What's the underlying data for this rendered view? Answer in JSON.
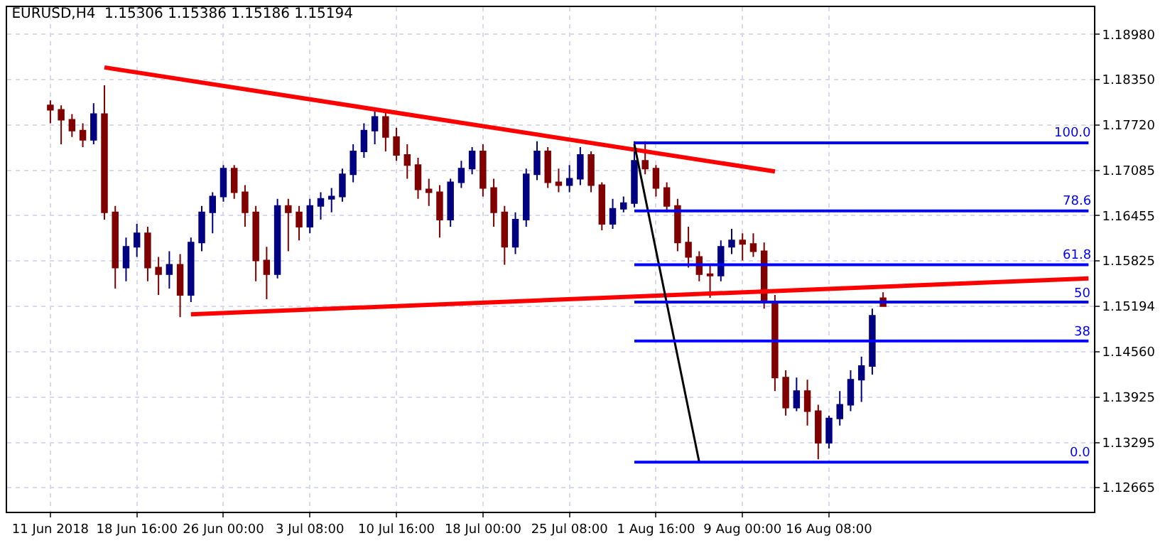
{
  "chart_data": {
    "type": "candlestick",
    "title": "EURUSD,H4  1.15306 1.15386 1.15186 1.15194",
    "categories": [
      "11 Jun 2018",
      null,
      null,
      null,
      null,
      null,
      null,
      null,
      "18 Jun 16:00",
      null,
      null,
      null,
      null,
      null,
      null,
      null,
      "26 Jun 00:00",
      null,
      null,
      null,
      null,
      null,
      null,
      null,
      "3 Jul 08:00",
      null,
      null,
      null,
      null,
      null,
      null,
      null,
      "10 Jul 16:00",
      null,
      null,
      null,
      null,
      null,
      null,
      null,
      "18 Jul 00:00",
      null,
      null,
      null,
      null,
      null,
      null,
      null,
      "25 Jul 08:00",
      null,
      null,
      null,
      null,
      null,
      null,
      null,
      "1 Aug 16:00",
      null,
      null,
      null,
      null,
      null,
      null,
      null,
      "9 Aug 00:00",
      null,
      null,
      null,
      null,
      null,
      null,
      null,
      "16 Aug 08:00",
      null,
      null,
      null,
      null,
      null,
      null,
      null,
      null,
      null,
      null,
      null,
      null,
      null,
      null,
      null,
      null,
      null,
      null,
      null,
      null,
      null,
      null,
      null,
      null
    ],
    "ohlc": [
      [
        1.1799,
        1.1806,
        1.1774,
        1.1793
      ],
      [
        1.1793,
        1.1799,
        1.1745,
        1.1779
      ],
      [
        1.1779,
        1.1787,
        1.1755,
        1.1764
      ],
      [
        1.1764,
        1.1774,
        1.1741,
        1.1751
      ],
      [
        1.1751,
        1.1802,
        1.1745,
        1.1787
      ],
      [
        1.1787,
        1.1827,
        1.164,
        1.165
      ],
      [
        1.165,
        1.1659,
        1.1544,
        1.1573
      ],
      [
        1.1573,
        1.1615,
        1.1554,
        1.1602
      ],
      [
        1.1602,
        1.1634,
        1.1588,
        1.1621
      ],
      [
        1.1621,
        1.163,
        1.1554,
        1.1573
      ],
      [
        1.1573,
        1.1588,
        1.1535,
        1.1564
      ],
      [
        1.1564,
        1.1596,
        1.1544,
        1.1577
      ],
      [
        1.1577,
        1.1592,
        1.1504,
        1.1535
      ],
      [
        1.1535,
        1.1615,
        1.1525,
        1.1608
      ],
      [
        1.1608,
        1.1659,
        1.1596,
        1.165
      ],
      [
        1.165,
        1.1678,
        1.1621,
        1.1672
      ],
      [
        1.1672,
        1.1716,
        1.1665,
        1.1711
      ],
      [
        1.1711,
        1.1716,
        1.1669,
        1.1678
      ],
      [
        1.1678,
        1.1688,
        1.163,
        1.165
      ],
      [
        1.165,
        1.1659,
        1.1554,
        1.1583
      ],
      [
        1.1583,
        1.1602,
        1.1529,
        1.1564
      ],
      [
        1.1564,
        1.1669,
        1.1558,
        1.1659
      ],
      [
        1.1659,
        1.1669,
        1.1596,
        1.165
      ],
      [
        1.165,
        1.1659,
        1.1611,
        1.163
      ],
      [
        1.163,
        1.1669,
        1.1621,
        1.1659
      ],
      [
        1.1659,
        1.1678,
        1.164,
        1.1669
      ],
      [
        1.1669,
        1.1684,
        1.165,
        1.1672
      ],
      [
        1.1672,
        1.1711,
        1.1665,
        1.1703
      ],
      [
        1.1703,
        1.1745,
        1.1692,
        1.1735
      ],
      [
        1.1735,
        1.1774,
        1.1726,
        1.1764
      ],
      [
        1.1764,
        1.1791,
        1.1745,
        1.1783
      ],
      [
        1.1783,
        1.1793,
        1.1735,
        1.1755
      ],
      [
        1.1755,
        1.1768,
        1.1722,
        1.173
      ],
      [
        1.173,
        1.1745,
        1.1697,
        1.1716
      ],
      [
        1.1716,
        1.1726,
        1.1669,
        1.1682
      ],
      [
        1.1682,
        1.1697,
        1.1659,
        1.1678
      ],
      [
        1.1678,
        1.1688,
        1.1615,
        1.164
      ],
      [
        1.164,
        1.1697,
        1.163,
        1.1692
      ],
      [
        1.1692,
        1.1722,
        1.1684,
        1.1711
      ],
      [
        1.1711,
        1.1741,
        1.1703,
        1.1735
      ],
      [
        1.1735,
        1.1745,
        1.1672,
        1.1684
      ],
      [
        1.1684,
        1.1697,
        1.163,
        1.165
      ],
      [
        1.165,
        1.1659,
        1.1577,
        1.1602
      ],
      [
        1.1602,
        1.165,
        1.1592,
        1.164
      ],
      [
        1.164,
        1.1711,
        1.163,
        1.1703
      ],
      [
        1.1703,
        1.1749,
        1.1695,
        1.1735
      ],
      [
        1.1735,
        1.1741,
        1.1684,
        1.1692
      ],
      [
        1.1692,
        1.1711,
        1.1678,
        1.1688
      ],
      [
        1.1688,
        1.1716,
        1.1678,
        1.1697
      ],
      [
        1.1697,
        1.1741,
        1.1688,
        1.173
      ],
      [
        1.173,
        1.1735,
        1.1678,
        1.1688
      ],
      [
        1.1688,
        1.1692,
        1.1625,
        1.1634
      ],
      [
        1.1634,
        1.1669,
        1.1627,
        1.1655
      ],
      [
        1.1655,
        1.1672,
        1.165,
        1.1663
      ],
      [
        1.1663,
        1.1749,
        1.1657,
        1.1722
      ],
      [
        1.1722,
        1.1749,
        1.1703,
        1.1711
      ],
      [
        1.1711,
        1.1716,
        1.1672,
        1.1684
      ],
      [
        1.1684,
        1.1692,
        1.165,
        1.1659
      ],
      [
        1.1659,
        1.1669,
        1.1596,
        1.1608
      ],
      [
        1.1608,
        1.163,
        1.1573,
        1.1588
      ],
      [
        1.1588,
        1.1596,
        1.1554,
        1.1564
      ],
      [
        1.1564,
        1.1577,
        1.1531,
        1.1562
      ],
      [
        1.1562,
        1.1611,
        1.1554,
        1.1602
      ],
      [
        1.1602,
        1.1627,
        1.1592,
        1.1611
      ],
      [
        1.1611,
        1.1621,
        1.1583,
        1.1606
      ],
      [
        1.1606,
        1.1621,
        1.1588,
        1.1596
      ],
      [
        1.1596,
        1.1608,
        1.1516,
        1.1525
      ],
      [
        1.1525,
        1.1535,
        1.1401,
        1.142
      ],
      [
        1.142,
        1.143,
        1.1367,
        1.1378
      ],
      [
        1.1378,
        1.142,
        1.1373,
        1.1401
      ],
      [
        1.1401,
        1.1417,
        1.1353,
        1.1373
      ],
      [
        1.1373,
        1.1382,
        1.1306,
        1.1329
      ],
      [
        1.1329,
        1.1367,
        1.1321,
        1.1363
      ],
      [
        1.1363,
        1.1401,
        1.1353,
        1.1382
      ],
      [
        1.1382,
        1.143,
        1.1373,
        1.1417
      ],
      [
        1.1417,
        1.1449,
        1.1386,
        1.1436
      ],
      [
        1.1436,
        1.1516,
        1.1424,
        1.1506
      ],
      [
        1.15306,
        1.15386,
        1.15186,
        1.15194
      ],
      null,
      null,
      null,
      null,
      null,
      null,
      null,
      null,
      null,
      null,
      null,
      null,
      null,
      null,
      null,
      null,
      null,
      null,
      null
    ],
    "colors": [
      "#800000",
      "#800000",
      "#800000",
      "#800000",
      "#000080",
      "#800000",
      "#800000",
      "#000080",
      "#000080",
      "#800000",
      "#800000",
      "#000080",
      "#800000",
      "#000080",
      "#000080",
      "#000080",
      "#000080",
      "#800000",
      "#800000",
      "#800000",
      "#800000",
      "#000080",
      "#800000",
      "#800000",
      "#000080",
      "#000080",
      "#000080",
      "#000080",
      "#000080",
      "#000080",
      "#000080",
      "#800000",
      "#800000",
      "#800000",
      "#800000",
      "#800000",
      "#800000",
      "#000080",
      "#000080",
      "#000080",
      "#800000",
      "#800000",
      "#800000",
      "#000080",
      "#000080",
      "#000080",
      "#800000",
      "#800000",
      "#000080",
      "#000080",
      "#800000",
      "#800000",
      "#000080",
      "#000080",
      "#000080",
      "#800000",
      "#800000",
      "#800000",
      "#800000",
      "#800000",
      "#800000",
      "#800000",
      "#000080",
      "#000080",
      "#800000",
      "#800000",
      "#800000",
      "#800000",
      "#800000",
      "#000080",
      "#800000",
      "#800000",
      "#000080",
      "#000080",
      "#000080",
      "#000080",
      "#000080",
      "#800000",
      null,
      null,
      null,
      null,
      null,
      null,
      null,
      null,
      null,
      null,
      null,
      null,
      null,
      null,
      null,
      null,
      null,
      null,
      null
    ],
    "series": [
      {
        "type": "line",
        "color": "#ff0000",
        "values": [
          null,
          null,
          null,
          null,
          null,
          1.1852,
          null,
          null,
          null,
          null,
          null,
          null,
          null,
          null,
          null,
          null,
          null,
          null,
          null,
          null,
          null,
          null,
          null,
          null,
          null,
          null,
          null,
          null,
          null,
          null,
          null,
          null,
          null,
          null,
          null,
          null,
          null,
          null,
          null,
          null,
          null,
          null,
          null,
          null,
          null,
          null,
          null,
          null,
          null,
          null,
          null,
          null,
          null,
          null,
          null,
          null,
          null,
          null,
          null,
          null,
          null,
          null,
          null,
          null,
          null,
          null,
          null,
          1.1707,
          null,
          null,
          null,
          null,
          null,
          null,
          null,
          null,
          null,
          null,
          null,
          null,
          null,
          null,
          null,
          null,
          null,
          null,
          null,
          null,
          null,
          null,
          null,
          null,
          null,
          null,
          null,
          null,
          null
        ]
      },
      {
        "type": "line",
        "color": "#ff0000",
        "values": [
          null,
          null,
          null,
          null,
          null,
          null,
          null,
          null,
          null,
          null,
          null,
          null,
          null,
          1.1508,
          null,
          null,
          null,
          null,
          null,
          null,
          null,
          null,
          null,
          null,
          null,
          null,
          null,
          null,
          null,
          null,
          null,
          null,
          null,
          null,
          null,
          null,
          null,
          null,
          null,
          null,
          null,
          null,
          null,
          null,
          null,
          null,
          null,
          null,
          null,
          null,
          null,
          null,
          null,
          null,
          null,
          null,
          null,
          null,
          null,
          null,
          null,
          null,
          null,
          null,
          null,
          null,
          null,
          null,
          null,
          null,
          null,
          null,
          null,
          null,
          null,
          null,
          null,
          null,
          null,
          null,
          null,
          null,
          null,
          null,
          null,
          null,
          null,
          null,
          null,
          null,
          null,
          null,
          null,
          null,
          null,
          null,
          1.1558
        ]
      },
      {
        "type": "line",
        "color": "#000000",
        "values": [
          null,
          null,
          null,
          null,
          null,
          null,
          null,
          null,
          null,
          null,
          null,
          null,
          null,
          null,
          null,
          null,
          null,
          null,
          null,
          null,
          null,
          null,
          null,
          null,
          null,
          null,
          null,
          null,
          null,
          null,
          null,
          null,
          null,
          null,
          null,
          null,
          null,
          null,
          null,
          null,
          null,
          null,
          null,
          null,
          null,
          null,
          null,
          null,
          null,
          null,
          null,
          null,
          null,
          null,
          1.1745,
          null,
          null,
          null,
          null,
          null,
          1.1302,
          null,
          null,
          null,
          null,
          null,
          null,
          null,
          null,
          null,
          null,
          null,
          null,
          null,
          null,
          null,
          null,
          null,
          null,
          null,
          null,
          null,
          null,
          null,
          null,
          null,
          null,
          null,
          null,
          null,
          null,
          null,
          null,
          null,
          null,
          null,
          null
        ]
      },
      {
        "type": "line",
        "color": "#0000ff",
        "name": "100.0",
        "values": [
          null,
          null,
          null,
          null,
          null,
          null,
          null,
          null,
          null,
          null,
          null,
          null,
          null,
          null,
          null,
          null,
          null,
          null,
          null,
          null,
          null,
          null,
          null,
          null,
          null,
          null,
          null,
          null,
          null,
          null,
          null,
          null,
          null,
          null,
          null,
          null,
          null,
          null,
          null,
          null,
          null,
          null,
          null,
          null,
          null,
          null,
          null,
          null,
          null,
          null,
          null,
          null,
          null,
          null,
          1.1747,
          null,
          null,
          null,
          null,
          null,
          null,
          null,
          null,
          null,
          null,
          null,
          null,
          null,
          null,
          null,
          null,
          null,
          null,
          null,
          null,
          null,
          null,
          null,
          null,
          null,
          null,
          null,
          null,
          null,
          null,
          null,
          null,
          null,
          null,
          null,
          null,
          null,
          null,
          null,
          null,
          null,
          1.1747
        ]
      },
      {
        "type": "line",
        "color": "#0000ff",
        "name": "78.6",
        "values": [
          null,
          null,
          null,
          null,
          null,
          null,
          null,
          null,
          null,
          null,
          null,
          null,
          null,
          null,
          null,
          null,
          null,
          null,
          null,
          null,
          null,
          null,
          null,
          null,
          null,
          null,
          null,
          null,
          null,
          null,
          null,
          null,
          null,
          null,
          null,
          null,
          null,
          null,
          null,
          null,
          null,
          null,
          null,
          null,
          null,
          null,
          null,
          null,
          null,
          null,
          null,
          null,
          null,
          null,
          1.1652,
          null,
          null,
          null,
          null,
          null,
          null,
          null,
          null,
          null,
          null,
          null,
          null,
          null,
          null,
          null,
          null,
          null,
          null,
          null,
          null,
          null,
          null,
          null,
          null,
          null,
          null,
          null,
          null,
          null,
          null,
          null,
          null,
          null,
          null,
          null,
          null,
          null,
          null,
          null,
          null,
          null,
          1.1652
        ]
      },
      {
        "type": "line",
        "color": "#0000ff",
        "name": "61.8",
        "values": [
          null,
          null,
          null,
          null,
          null,
          null,
          null,
          null,
          null,
          null,
          null,
          null,
          null,
          null,
          null,
          null,
          null,
          null,
          null,
          null,
          null,
          null,
          null,
          null,
          null,
          null,
          null,
          null,
          null,
          null,
          null,
          null,
          null,
          null,
          null,
          null,
          null,
          null,
          null,
          null,
          null,
          null,
          null,
          null,
          null,
          null,
          null,
          null,
          null,
          null,
          null,
          null,
          null,
          null,
          1.1577,
          null,
          null,
          null,
          null,
          null,
          null,
          null,
          null,
          null,
          null,
          null,
          null,
          null,
          null,
          null,
          null,
          null,
          null,
          null,
          null,
          null,
          null,
          null,
          null,
          null,
          null,
          null,
          null,
          null,
          null,
          null,
          null,
          null,
          null,
          null,
          null,
          null,
          null,
          null,
          null,
          null,
          1.1577
        ]
      },
      {
        "type": "line",
        "color": "#0000ff",
        "name": "50",
        "values": [
          null,
          null,
          null,
          null,
          null,
          null,
          null,
          null,
          null,
          null,
          null,
          null,
          null,
          null,
          null,
          null,
          null,
          null,
          null,
          null,
          null,
          null,
          null,
          null,
          null,
          null,
          null,
          null,
          null,
          null,
          null,
          null,
          null,
          null,
          null,
          null,
          null,
          null,
          null,
          null,
          null,
          null,
          null,
          null,
          null,
          null,
          null,
          null,
          null,
          null,
          null,
          null,
          null,
          null,
          1.1525,
          null,
          null,
          null,
          null,
          null,
          null,
          null,
          null,
          null,
          null,
          null,
          null,
          null,
          null,
          null,
          null,
          null,
          null,
          null,
          null,
          null,
          null,
          null,
          null,
          null,
          null,
          null,
          null,
          null,
          null,
          null,
          null,
          null,
          null,
          null,
          null,
          null,
          null,
          null,
          null,
          null,
          1.1525
        ]
      },
      {
        "type": "line",
        "color": "#0000ff",
        "name": "38",
        "values": [
          null,
          null,
          null,
          null,
          null,
          null,
          null,
          null,
          null,
          null,
          null,
          null,
          null,
          null,
          null,
          null,
          null,
          null,
          null,
          null,
          null,
          null,
          null,
          null,
          null,
          null,
          null,
          null,
          null,
          null,
          null,
          null,
          null,
          null,
          null,
          null,
          null,
          null,
          null,
          null,
          null,
          null,
          null,
          null,
          null,
          null,
          null,
          null,
          null,
          null,
          null,
          null,
          null,
          null,
          1.1471,
          null,
          null,
          null,
          null,
          null,
          null,
          null,
          null,
          null,
          null,
          null,
          null,
          null,
          null,
          null,
          null,
          null,
          null,
          null,
          null,
          null,
          null,
          null,
          null,
          null,
          null,
          null,
          null,
          null,
          null,
          null,
          null,
          null,
          null,
          null,
          null,
          null,
          null,
          null,
          null,
          null,
          1.1471
        ]
      },
      {
        "type": "line",
        "color": "#0000ff",
        "name": "0.0",
        "values": [
          null,
          null,
          null,
          null,
          null,
          null,
          null,
          null,
          null,
          null,
          null,
          null,
          null,
          null,
          null,
          null,
          null,
          null,
          null,
          null,
          null,
          null,
          null,
          null,
          null,
          null,
          null,
          null,
          null,
          null,
          null,
          null,
          null,
          null,
          null,
          null,
          null,
          null,
          null,
          null,
          null,
          null,
          null,
          null,
          null,
          null,
          null,
          null,
          null,
          null,
          null,
          null,
          null,
          null,
          1.1302,
          null,
          null,
          null,
          null,
          null,
          null,
          null,
          null,
          null,
          null,
          null,
          null,
          null,
          null,
          null,
          null,
          null,
          null,
          null,
          null,
          null,
          null,
          null,
          null,
          null,
          null,
          null,
          null,
          null,
          null,
          null,
          null,
          null,
          null,
          null,
          null,
          null,
          null,
          null,
          null,
          null,
          1.1302
        ]
      }
    ],
    "ylim": [
      1.1233,
      1.1936
    ],
    "yticks": [
      {
        "value": 1.1898,
        "label": "1.18980"
      },
      {
        "value": 1.1835,
        "label": "1.18350"
      },
      {
        "value": 1.1772,
        "label": "1.17720"
      },
      {
        "value": 1.17085,
        "label": "1.17085"
      },
      {
        "value": 1.16455,
        "label": "1.16455"
      },
      {
        "value": 1.15825,
        "label": "1.15825"
      },
      {
        "value": 1.15194,
        "label": "1.15194"
      },
      {
        "value": 1.1456,
        "label": "1.14560"
      },
      {
        "value": 1.13925,
        "label": "1.13925"
      },
      {
        "value": 1.13295,
        "label": "1.13295"
      },
      {
        "value": 1.12665,
        "label": "1.12665"
      }
    ],
    "grid": true,
    "legend": false
  }
}
